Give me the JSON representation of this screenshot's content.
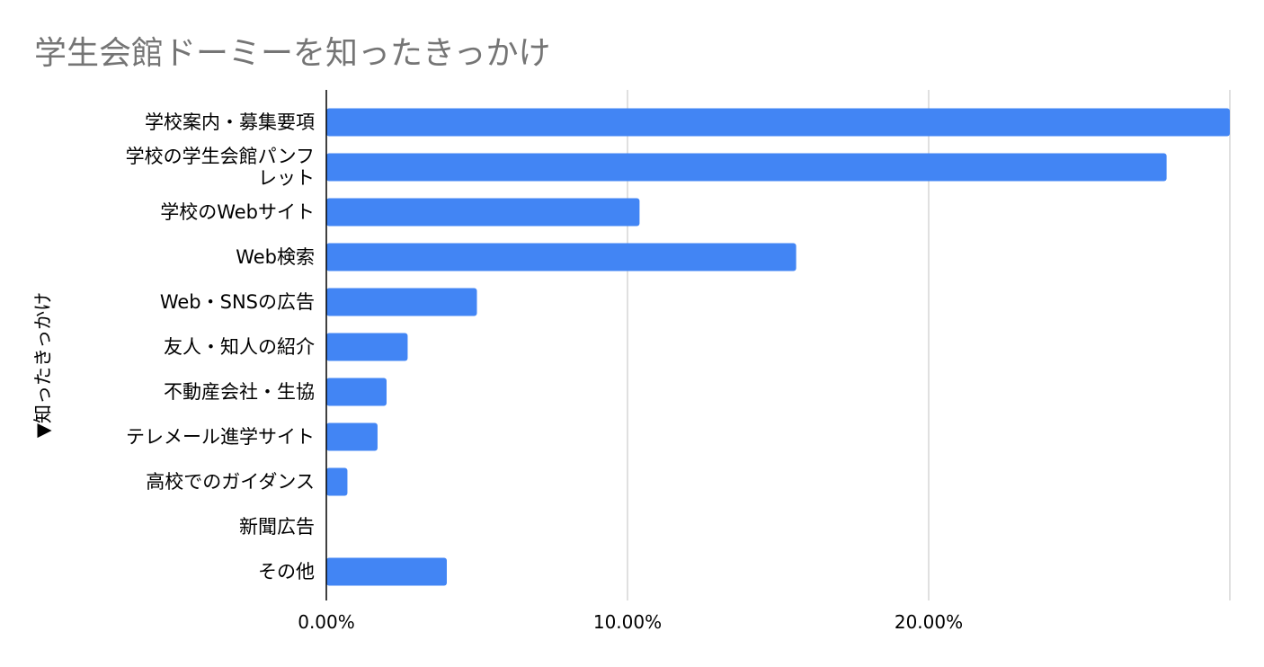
{
  "chart_data": {
    "type": "bar",
    "orientation": "horizontal",
    "title": "学生会館ドーミーを知ったきっかけ",
    "ylabel": "▼知ったきっかけ",
    "xlabel": "",
    "categories": [
      [
        "学校案内・募集要項"
      ],
      [
        "学校の学生会館パンフ",
        "レット"
      ],
      [
        "学校のWebサイト"
      ],
      [
        "Web検索"
      ],
      [
        "Web・SNSの広告"
      ],
      [
        "友人・知人の紹介"
      ],
      [
        "不動産会社・生協"
      ],
      [
        "テレメール進学サイト"
      ],
      [
        "高校でのガイダンス"
      ],
      [
        "新聞広告"
      ],
      [
        "その他"
      ]
    ],
    "values": [
      30.0,
      27.9,
      10.4,
      15.6,
      5.0,
      2.7,
      2.0,
      1.7,
      0.7,
      0.0,
      4.0
    ],
    "xlim": [
      0,
      30
    ],
    "xticks": [
      {
        "value": 0,
        "label": "0.00%"
      },
      {
        "value": 10,
        "label": "10.00%"
      },
      {
        "value": 20,
        "label": "20.00%"
      }
    ],
    "gridlines": [
      10,
      20,
      30
    ],
    "grid": true,
    "legend": "none",
    "colors": {
      "bar": "#4285f4",
      "grid": "#cccccc",
      "axis": "#000000",
      "title": "#757575",
      "text": "#000000"
    }
  }
}
